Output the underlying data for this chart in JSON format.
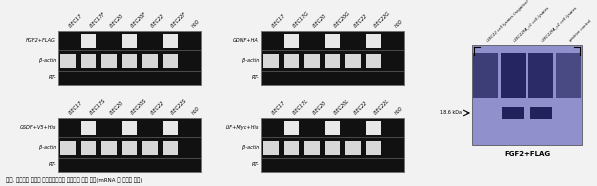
{
  "figure_bg": "#f0f0f0",
  "panels": [
    {
      "id": "FGF2+FLAG",
      "lanes": [
        "i3EC17",
        "i3EC17F",
        "i3EC20",
        "i3EC20F",
        "i3EC22",
        "i3EC22F",
        "H₂O"
      ],
      "rows": [
        "FGF2+FLAG",
        "β-actin",
        "RT-"
      ],
      "bands": [
        [
          false,
          true,
          false,
          true,
          false,
          true,
          false
        ],
        [
          true,
          true,
          true,
          true,
          true,
          true,
          false
        ],
        [
          false,
          false,
          false,
          false,
          false,
          false,
          false
        ]
      ],
      "col": 0,
      "row": 0
    },
    {
      "id": "GDNF+HA",
      "lanes": [
        "i3EC17",
        "i3EC17G",
        "i3EC20",
        "i3EC20G",
        "i3EC22",
        "i3EC22G",
        "H₂O"
      ],
      "rows": [
        "GDNF+HA",
        "β-actin",
        "RT-"
      ],
      "bands": [
        [
          false,
          true,
          false,
          true,
          false,
          true,
          false
        ],
        [
          true,
          true,
          true,
          true,
          true,
          true,
          false
        ],
        [
          false,
          false,
          false,
          false,
          false,
          false,
          false
        ]
      ],
      "col": 1,
      "row": 0
    },
    {
      "id": "GSDF+V5+His",
      "lanes": [
        "i3EC17",
        "i3EC17S",
        "i3EC20",
        "i3EC20S",
        "i3EC22",
        "i3EC22S",
        "H₂O"
      ],
      "rows": [
        "GSDF+V5+His",
        "β-actin",
        "RT-"
      ],
      "bands": [
        [
          false,
          true,
          false,
          true,
          false,
          true,
          false
        ],
        [
          true,
          true,
          true,
          true,
          true,
          true,
          false
        ],
        [
          false,
          false,
          false,
          false,
          false,
          false,
          false
        ]
      ],
      "col": 0,
      "row": 1
    },
    {
      "id": "LIF+Myc+His",
      "lanes": [
        "i3EC17",
        "i3EC17L",
        "i3EC20",
        "i3EC20L",
        "i3EC22",
        "i3EC22L",
        "H₂O"
      ],
      "rows": [
        "LIF+Myc+His",
        "β-actin",
        "RT-"
      ],
      "bands": [
        [
          false,
          true,
          false,
          true,
          false,
          true,
          false
        ],
        [
          true,
          true,
          true,
          true,
          true,
          true,
          false
        ],
        [
          false,
          false,
          false,
          false,
          false,
          false,
          false
        ]
      ],
      "col": 1,
      "row": 1
    }
  ],
  "blot": {
    "col_labels": [
      "i3EC22 cell lysates (negative)",
      "i3EC22FA_c1 cell lysates",
      "i3EC22FA_c2 cell lysates",
      "positive control"
    ],
    "label": "FGF2+FLAG",
    "size_label": "18.6 kDa"
  },
  "caption": "그림. 성장인자 과발현 영양세포주들의 성장인자 발현 검증(mRNA 나단백질 발현)"
}
